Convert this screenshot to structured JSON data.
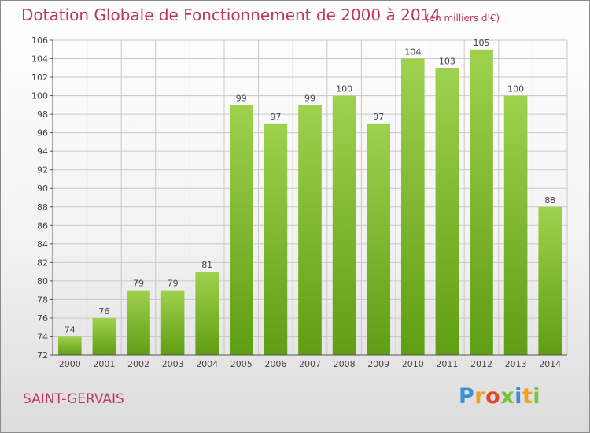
{
  "header": {
    "title": "Dotation Globale de Fonctionnement de 2000 à 2014",
    "unit": "(en milliers d'€)"
  },
  "footer": {
    "commune": "SAINT-GERVAIS",
    "logo_letters": [
      "P",
      "r",
      "o",
      "x",
      "i",
      "t",
      "i"
    ]
  },
  "colors": {
    "title": "#c0355f",
    "bar_top": "#9fd14e",
    "bar_bottom": "#5f9e12",
    "grid": "#c8c8c8",
    "axis": "#555555",
    "label": "#444444"
  },
  "chart_data": {
    "type": "bar",
    "title": "Dotation Globale de Fonctionnement de 2000 à 2014",
    "subtitle": "(en milliers d'€)",
    "categories": [
      "2000",
      "2001",
      "2002",
      "2003",
      "2004",
      "2005",
      "2006",
      "2007",
      "2008",
      "2009",
      "2010",
      "2011",
      "2012",
      "2013",
      "2014"
    ],
    "values": [
      74,
      76,
      79,
      79,
      81,
      99,
      97,
      99,
      100,
      97,
      104,
      103,
      105,
      100,
      88
    ],
    "ylim": [
      72,
      106
    ],
    "yticks": [
      72,
      74,
      76,
      78,
      80,
      82,
      84,
      86,
      88,
      90,
      92,
      94,
      96,
      98,
      100,
      102,
      104,
      106
    ],
    "grid": true,
    "data_labels": true,
    "legend": "none"
  }
}
